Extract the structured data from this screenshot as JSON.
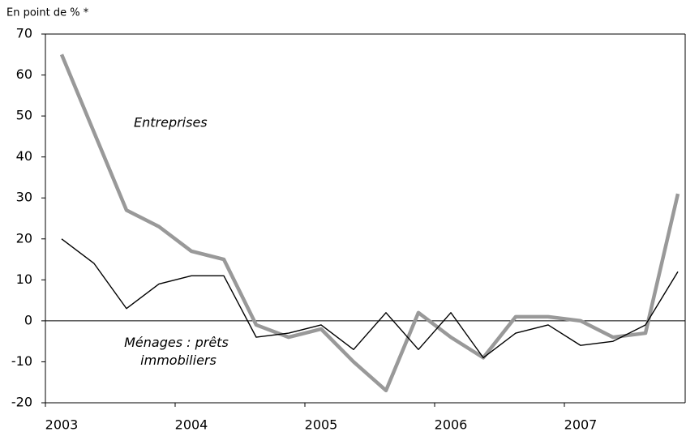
{
  "chart_data": {
    "type": "line",
    "y_label": "En point de % *",
    "categories": [
      "2003",
      null,
      null,
      null,
      "2004",
      null,
      null,
      null,
      "2005",
      null,
      null,
      null,
      "2006",
      null,
      null,
      null,
      "2007",
      null,
      null,
      null
    ],
    "series": [
      {
        "name": "Entreprises",
        "color": "#999999",
        "values": [
          65,
          46,
          27,
          23,
          17,
          15,
          -1,
          -4,
          -2,
          -10,
          -17,
          2,
          -4,
          -9,
          1,
          1,
          0,
          -4,
          -3,
          31
        ]
      },
      {
        "name": "Ménages : prêts immobiliers",
        "color": "#000000",
        "values": [
          20,
          14,
          3,
          9,
          11,
          11,
          -4,
          -3,
          -1,
          -7,
          2,
          -7,
          2,
          -9,
          -3,
          -1,
          -6,
          -5,
          -1,
          12
        ]
      }
    ],
    "ylim": [
      -20,
      70
    ],
    "yticks": [
      -20,
      -10,
      0,
      10,
      20,
      30,
      40,
      50,
      60,
      70
    ]
  }
}
